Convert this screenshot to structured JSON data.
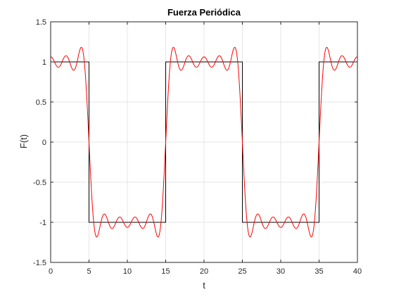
{
  "chart_data": {
    "type": "line",
    "title": "Fuerza Periódica",
    "xlabel": "t",
    "ylabel": "F(t)",
    "xlim": [
      0,
      40
    ],
    "ylim": [
      -1.5,
      1.5
    ],
    "grid": true,
    "x_ticks": [
      "0",
      "5",
      "10",
      "15",
      "20",
      "25",
      "30",
      "35",
      "40"
    ],
    "y_ticks": [
      "1.5",
      "1",
      "0.5",
      "0",
      "-0.5",
      "-1",
      "-1.5"
    ],
    "series": [
      {
        "color": "#000000",
        "kind": "square-wave",
        "x": [
          0,
          5,
          5,
          15,
          15,
          25,
          25,
          35,
          35,
          40
        ],
        "y": [
          1,
          1,
          -1,
          -1,
          1,
          1,
          -1,
          -1,
          1,
          1
        ]
      },
      {
        "color": "#ff0000",
        "kind": "fourier-approximation",
        "period": 20,
        "amplitude": 1,
        "odd_harmonics_through": 9
      }
    ]
  },
  "colors": {
    "grid": "#e6e6e6",
    "axes": "#262626",
    "square_wave": "#000000",
    "fourier": "#ff0000"
  }
}
